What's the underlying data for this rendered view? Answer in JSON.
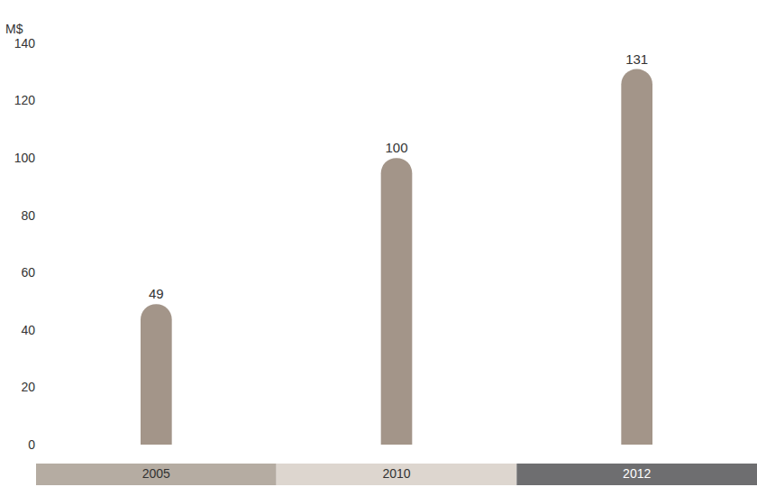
{
  "chart_data": {
    "type": "bar",
    "ylabel": "M$",
    "categories": [
      "2005",
      "2010",
      "2012"
    ],
    "values": [
      49,
      100,
      131
    ],
    "color": "#a39589",
    "ylim": [
      0,
      140
    ],
    "yticks": [
      0,
      20,
      40,
      60,
      80,
      100,
      120,
      140
    ],
    "grid": false,
    "data_labels": true
  }
}
